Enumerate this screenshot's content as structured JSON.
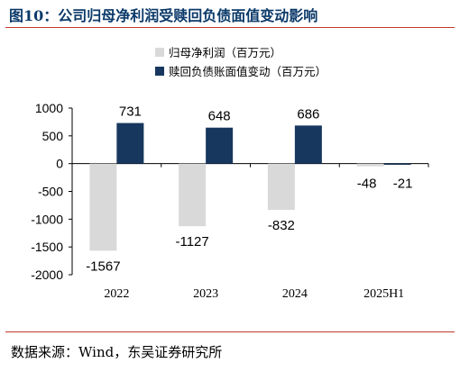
{
  "figure": {
    "title": "图10：公司归母净利润受赎回负债面值变动影响",
    "source": "数据来源：Wind，东吴证券研究所"
  },
  "colors": {
    "series1": "#d9d9d9",
    "series2": "#17375e",
    "rule": "#c0392b",
    "title": "#0b3a6a"
  },
  "chart_data": {
    "type": "bar",
    "categories": [
      "2022",
      "2023",
      "2024",
      "2025H1"
    ],
    "series": [
      {
        "name": "归母净利润（百万元）",
        "values": [
          -1567,
          -1127,
          -832,
          -48
        ]
      },
      {
        "name": "赎回负债账面值变动（百万元）",
        "values": [
          731,
          648,
          686,
          -21
        ]
      }
    ],
    "yticks": [
      1000,
      500,
      0,
      -500,
      -1000,
      -1500,
      -2000
    ],
    "ylim": [
      -2000,
      1000
    ],
    "legend": "top-center",
    "grid": false
  }
}
